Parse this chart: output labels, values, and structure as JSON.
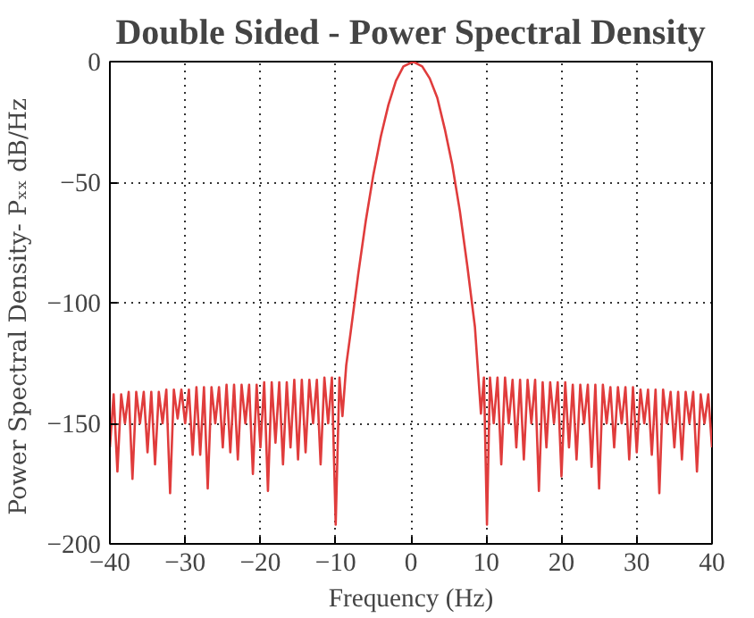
{
  "chart_data": {
    "type": "line",
    "title": "Double Sided - Power Spectral Density",
    "xlabel": "Frequency (Hz)",
    "ylabel": "Power Spectral Density- Pₓₓ  dB/Hz",
    "x": [
      -40,
      -39.5,
      -39,
      -38.5,
      -38,
      -37.5,
      -37,
      -36.5,
      -36,
      -35.5,
      -35,
      -34.5,
      -34,
      -33.5,
      -33,
      -32.5,
      -32,
      -31.5,
      -31,
      -30.5,
      -30,
      -29.5,
      -29,
      -28.5,
      -28,
      -27.5,
      -27,
      -26.5,
      -26,
      -25.5,
      -25,
      -24.5,
      -24,
      -23.5,
      -23,
      -22.5,
      -22,
      -21.5,
      -21,
      -20.5,
      -20,
      -19.5,
      -19,
      -18.5,
      -18,
      -17.5,
      -17,
      -16.5,
      -16,
      -15.5,
      -15,
      -14.5,
      -14,
      -13.5,
      -13,
      -12.5,
      -12,
      -11.5,
      -11,
      -10.5,
      -10,
      -9.5,
      -9.1,
      -8.6,
      -8,
      -7,
      -6,
      -5,
      -4,
      -3,
      -2,
      -1,
      0.3,
      1.5,
      2.5,
      3.5,
      4.5,
      5.5,
      6.5,
      7.5,
      8.5,
      9.3,
      9.7,
      10.1,
      10.5,
      11,
      11.5,
      12,
      12.5,
      13,
      13.5,
      14,
      14.5,
      15,
      15.5,
      16,
      16.5,
      17,
      17.5,
      18,
      18.5,
      19,
      19.5,
      20,
      20.5,
      21,
      21.5,
      22,
      22.5,
      23,
      23.5,
      24,
      24.5,
      25,
      25.5,
      26,
      26.5,
      27,
      27.5,
      28,
      28.5,
      29,
      29.5,
      30,
      30.5,
      31,
      31.5,
      32,
      32.5,
      33,
      33.5,
      34,
      34.5,
      35,
      35.5,
      36,
      36.5,
      37,
      37.5,
      38,
      38.5,
      39,
      39.5,
      40
    ],
    "series": [
      {
        "color": "#e03c3c",
        "values": [
          -160,
          -138,
          -170,
          -138,
          -150,
          -137,
          -173,
          -137,
          -150,
          -137,
          -162,
          -137,
          -167,
          -137,
          -150,
          -136,
          -179,
          -136,
          -148,
          -136,
          -150,
          -136,
          -163,
          -135,
          -163,
          -135,
          -177,
          -135,
          -150,
          -135,
          -160,
          -134,
          -162,
          -134,
          -165,
          -134,
          -150,
          -134,
          -171,
          -134,
          -160,
          -133,
          -178,
          -133,
          -158,
          -133,
          -167,
          -133,
          -160,
          -132,
          -165,
          -132,
          -162,
          -132,
          -150,
          -132,
          -167,
          -131,
          -150,
          -131,
          -192,
          -131,
          -147,
          -126,
          -112,
          -88,
          -66,
          -47,
          -31,
          -18,
          -8,
          -2,
          0,
          -2,
          -7,
          -15,
          -28,
          -43,
          -62,
          -85,
          -110,
          -146,
          -131,
          -192,
          -131,
          -150,
          -131,
          -167,
          -131,
          -150,
          -132,
          -160,
          -132,
          -165,
          -132,
          -150,
          -132,
          -178,
          -133,
          -160,
          -133,
          -150,
          -133,
          -172,
          -133,
          -160,
          -134,
          -165,
          -134,
          -150,
          -134,
          -168,
          -134,
          -177,
          -134,
          -150,
          -135,
          -160,
          -135,
          -150,
          -135,
          -165,
          -135,
          -162,
          -136,
          -150,
          -136,
          -163,
          -136,
          -179,
          -136,
          -150,
          -137,
          -160,
          -137,
          -165,
          -137,
          -150,
          -137,
          -170,
          -138,
          -150,
          -138,
          -160
        ]
      }
    ],
    "xlim": [
      -40,
      40
    ],
    "ylim": [
      -200,
      0
    ],
    "xticks": [
      -40,
      -30,
      -20,
      -10,
      0,
      10,
      20,
      30,
      40
    ],
    "yticks": [
      -200,
      -150,
      -100,
      -50,
      0
    ],
    "grid": true,
    "marker": "none",
    "line_style": "solid"
  }
}
